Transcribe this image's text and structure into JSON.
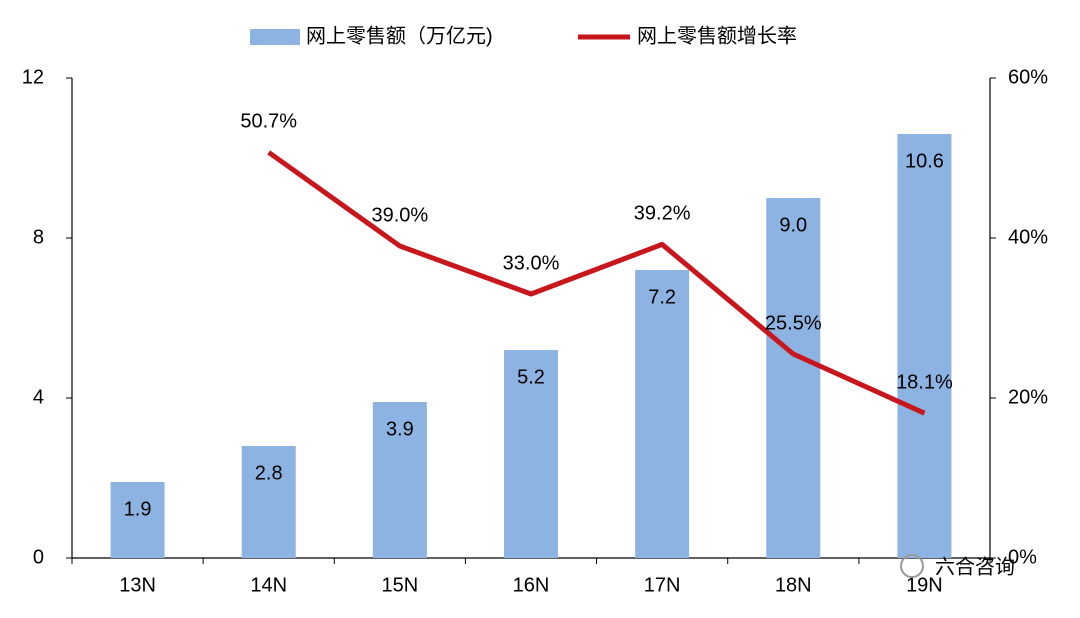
{
  "chart_data": {
    "type": "bar",
    "categories": [
      "13N",
      "14N",
      "15N",
      "16N",
      "17N",
      "18N",
      "19N"
    ],
    "series": [
      {
        "name": "网上零售额（万亿元)",
        "type": "bar",
        "color": "#8db3e2",
        "values": [
          1.9,
          2.8,
          3.9,
          5.2,
          7.2,
          9,
          10.6
        ],
        "value_labels": [
          "1.9",
          "2.8",
          "3.9",
          "5.2",
          "7.2",
          "9.0",
          "10.6"
        ]
      },
      {
        "name": "网上零售额增长率",
        "type": "line",
        "axis": "y2",
        "color": "#c8161d",
        "values": [
          null,
          50.7,
          39,
          33,
          39.2,
          25.5,
          18.1
        ],
        "value_labels": [
          null,
          "50.7%",
          "39.0%",
          "33.0%",
          "39.2%",
          "25.5%",
          "18.1%"
        ]
      }
    ],
    "ylim": [
      0,
      12
    ],
    "yticks": [
      0,
      4,
      8,
      12
    ],
    "y2lim": [
      0,
      60
    ],
    "y2ticks": [
      {
        "value": 0,
        "label": "0%"
      },
      {
        "value": 20,
        "label": "20%"
      },
      {
        "value": 40,
        "label": "40%"
      },
      {
        "value": 60,
        "label": "60%"
      }
    ],
    "grid": false,
    "watermark": "六合咨询"
  }
}
